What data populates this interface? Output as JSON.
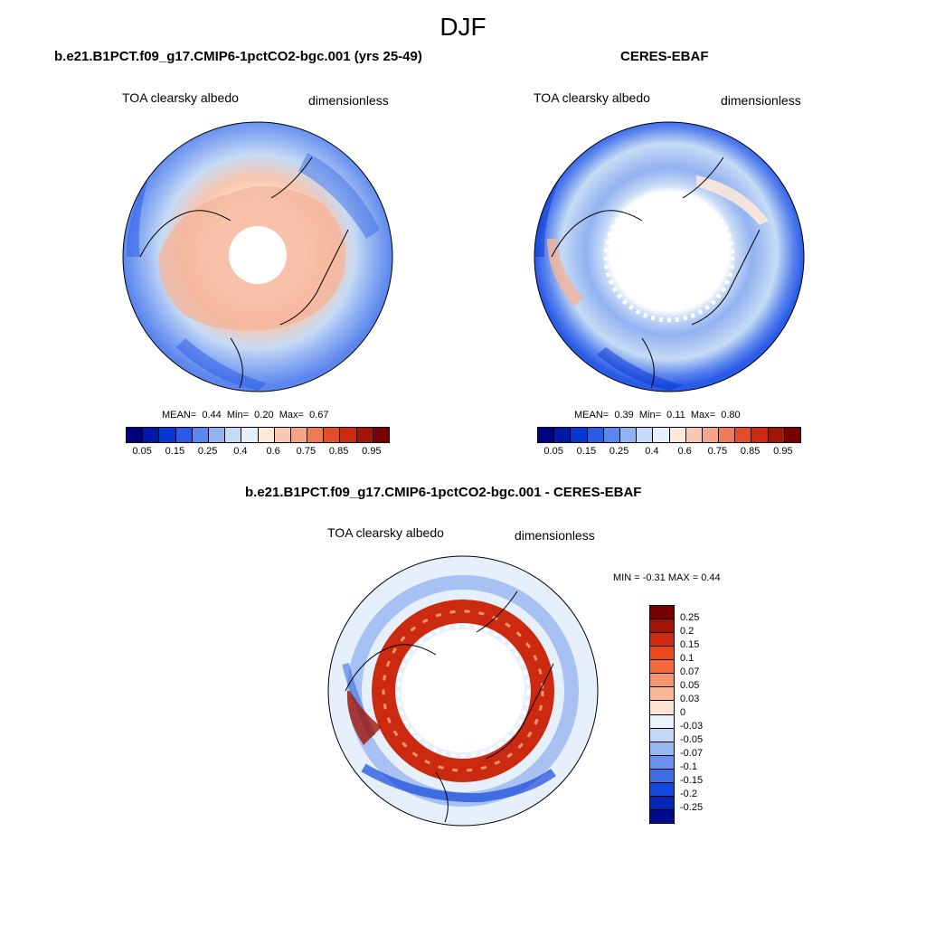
{
  "season": "DJF",
  "panels": {
    "model": {
      "title": "b.e21.B1PCT.f09_g17.CMIP6-1pctCO2-bgc.001 (yrs 25-49)",
      "variable": "TOA clearsky albedo",
      "units": "dimensionless",
      "stats": {
        "mean_label": "MEAN=",
        "mean": "0.44",
        "min_label": "Min=",
        "min": "0.20",
        "max_label": "Max=",
        "max": "0.67"
      }
    },
    "obs": {
      "title": "CERES-EBAF",
      "variable": "TOA clearsky albedo",
      "units": "dimensionless",
      "stats": {
        "mean_label": "MEAN=",
        "mean": "0.39",
        "min_label": "Min=",
        "min": "0.11",
        "max_label": "Max=",
        "max": "0.80"
      }
    },
    "diff": {
      "title": "b.e21.B1PCT.f09_g17.CMIP6-1pctCO2-bgc.001 - CERES-EBAF",
      "variable": "TOA clearsky albedo",
      "units": "dimensionless",
      "minmax": "MIN =  -0.31 MAX =   0.44"
    }
  },
  "colorbar_abs": {
    "colors": [
      "#000080",
      "#0019a8",
      "#0636d4",
      "#2a5ae8",
      "#5b86ee",
      "#92b2f2",
      "#c6dbf5",
      "#e6f0fa",
      "#fde8da",
      "#fac8b2",
      "#f4a688",
      "#ee7a58",
      "#e64c2b",
      "#cc2a10",
      "#a11508",
      "#7a0000"
    ],
    "labels": [
      "0.05",
      "0.15",
      "0.25",
      "0.4",
      "0.6",
      "0.75",
      "0.85",
      "0.95"
    ]
  },
  "colorbar_diff": {
    "colors": [
      "#7a0000",
      "#a11508",
      "#cc2a10",
      "#f0461c",
      "#f56a3d",
      "#f4956c",
      "#f8b898",
      "#fde4d2",
      "#eaf3fc",
      "#c3d8f5",
      "#97b6f0",
      "#6a92ec",
      "#3d6ee6",
      "#1447dc",
      "#0626b8",
      "#000a8c"
    ],
    "labels": [
      "0.25",
      "0.2",
      "0.15",
      "0.1",
      "0.07",
      "0.05",
      "0.03",
      "0",
      "-0.03",
      "-0.05",
      "-0.07",
      "-0.1",
      "-0.15",
      "-0.2",
      "-0.25"
    ]
  }
}
